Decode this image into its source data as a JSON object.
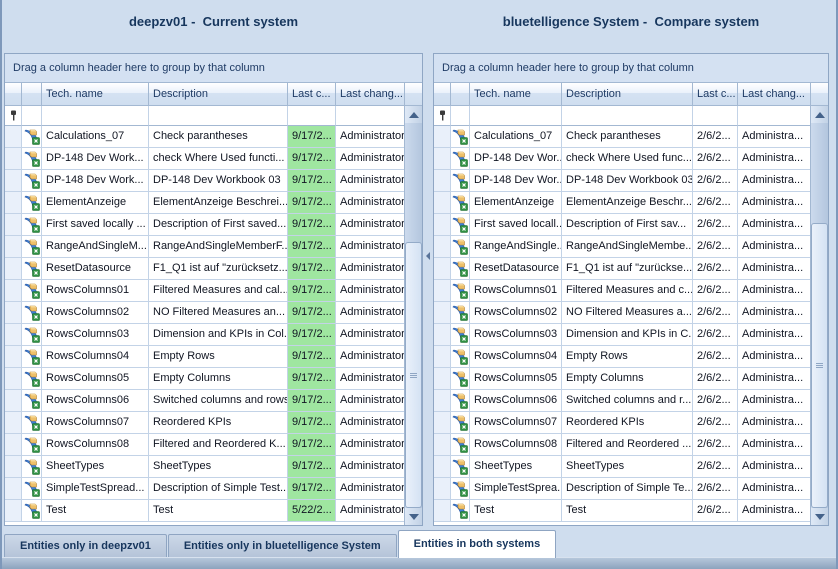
{
  "colors": {
    "highlight_green": "#9fe6a0",
    "title_navy": "#17365d",
    "window_background": "#cfddee"
  },
  "panels": [
    {
      "side": "left",
      "title": "deepzv01 -  Current system",
      "group_hint": "Drag a column header here to group by that column",
      "columns": [
        "Tech. name",
        "Description",
        "Last c...",
        "Last chang..."
      ],
      "date_highlighted": true,
      "rows": [
        {
          "tech": "Calculations_07",
          "desc": "Check parantheses",
          "date": "9/17/2...",
          "user": "Administrator"
        },
        {
          "tech": "DP-148 Dev Work...",
          "desc": "check Where Used functi...",
          "date": "9/17/2...",
          "user": "Administrator"
        },
        {
          "tech": "DP-148 Dev Work...",
          "desc": "DP-148 Dev Workbook 03",
          "date": "9/17/2...",
          "user": "Administrator"
        },
        {
          "tech": "ElementAnzeige",
          "desc": "ElementAnzeige Beschrei...",
          "date": "9/17/2...",
          "user": "Administrator"
        },
        {
          "tech": "First saved locally ...",
          "desc": "Description of First saved...",
          "date": "9/17/2...",
          "user": "Administrator"
        },
        {
          "tech": "RangeAndSingleM...",
          "desc": "RangeAndSingleMemberF...",
          "date": "9/17/2...",
          "user": "Administrator"
        },
        {
          "tech": "ResetDatasource",
          "desc": "F1_Q1 ist auf \"zurücksetz...",
          "date": "9/17/2...",
          "user": "Administrator"
        },
        {
          "tech": "RowsColumns01",
          "desc": "Filtered Measures and cal...",
          "date": "9/17/2...",
          "user": "Administrator"
        },
        {
          "tech": "RowsColumns02",
          "desc": "NO Filtered Measures an...",
          "date": "9/17/2...",
          "user": "Administrator"
        },
        {
          "tech": "RowsColumns03",
          "desc": "Dimension and KPIs in Col...",
          "date": "9/17/2...",
          "user": "Administrator"
        },
        {
          "tech": "RowsColumns04",
          "desc": "Empty Rows",
          "date": "9/17/2...",
          "user": "Administrator"
        },
        {
          "tech": "RowsColumns05",
          "desc": "Empty Columns",
          "date": "9/17/2...",
          "user": "Administrator"
        },
        {
          "tech": "RowsColumns06",
          "desc": "Switched columns and rows",
          "date": "9/17/2...",
          "user": "Administrator"
        },
        {
          "tech": "RowsColumns07",
          "desc": "Reordered KPIs",
          "date": "9/17/2...",
          "user": "Administrator"
        },
        {
          "tech": "RowsColumns08",
          "desc": "Filtered and Reordered K...",
          "date": "9/17/2...",
          "user": "Administrator"
        },
        {
          "tech": "SheetTypes",
          "desc": "SheetTypes",
          "date": "9/17/2...",
          "user": "Administrator"
        },
        {
          "tech": "SimpleTestSpread...",
          "desc": "Description of Simple Test...",
          "date": "9/17/2...",
          "user": "Administrator"
        },
        {
          "tech": "Test",
          "desc": "Test",
          "date": "5/22/2...",
          "user": "Administrator"
        }
      ]
    },
    {
      "side": "right",
      "title": "bluetelligence System -  Compare system",
      "group_hint": "Drag a column header here to group by that column",
      "columns": [
        "Tech. name",
        "Description",
        "Last c...",
        "Last chang..."
      ],
      "date_highlighted": false,
      "rows": [
        {
          "tech": "Calculations_07",
          "desc": "Check parantheses",
          "date": "2/6/2...",
          "user": "Administra..."
        },
        {
          "tech": "DP-148 Dev Wor...",
          "desc": "check Where Used func...",
          "date": "2/6/2...",
          "user": "Administra..."
        },
        {
          "tech": "DP-148 Dev Wor...",
          "desc": "DP-148 Dev Workbook 03",
          "date": "2/6/2...",
          "user": "Administra..."
        },
        {
          "tech": "ElementAnzeige",
          "desc": "ElementAnzeige Beschr...",
          "date": "2/6/2...",
          "user": "Administra..."
        },
        {
          "tech": "First saved locall...",
          "desc": "Description of First sav...",
          "date": "2/6/2...",
          "user": "Administra..."
        },
        {
          "tech": "RangeAndSingle...",
          "desc": "RangeAndSingleMembe...",
          "date": "2/6/2...",
          "user": "Administra..."
        },
        {
          "tech": "ResetDatasource",
          "desc": "F1_Q1 ist auf \"zurückse...",
          "date": "2/6/2...",
          "user": "Administra..."
        },
        {
          "tech": "RowsColumns01",
          "desc": "Filtered Measures and c...",
          "date": "2/6/2...",
          "user": "Administra..."
        },
        {
          "tech": "RowsColumns02",
          "desc": "NO Filtered Measures a...",
          "date": "2/6/2...",
          "user": "Administra..."
        },
        {
          "tech": "RowsColumns03",
          "desc": "Dimension and KPIs in C...",
          "date": "2/6/2...",
          "user": "Administra..."
        },
        {
          "tech": "RowsColumns04",
          "desc": "Empty Rows",
          "date": "2/6/2...",
          "user": "Administra..."
        },
        {
          "tech": "RowsColumns05",
          "desc": "Empty Columns",
          "date": "2/6/2...",
          "user": "Administra..."
        },
        {
          "tech": "RowsColumns06",
          "desc": "Switched columns and r...",
          "date": "2/6/2...",
          "user": "Administra..."
        },
        {
          "tech": "RowsColumns07",
          "desc": "Reordered KPIs",
          "date": "2/6/2...",
          "user": "Administra..."
        },
        {
          "tech": "RowsColumns08",
          "desc": "Filtered and Reordered ...",
          "date": "2/6/2...",
          "user": "Administra..."
        },
        {
          "tech": "SheetTypes",
          "desc": "SheetTypes",
          "date": "2/6/2...",
          "user": "Administra..."
        },
        {
          "tech": "SimpleTestSprea...",
          "desc": "Description of Simple Te...",
          "date": "2/6/2...",
          "user": "Administra..."
        },
        {
          "tech": "Test",
          "desc": "Test",
          "date": "2/6/2...",
          "user": "Administra..."
        }
      ]
    }
  ],
  "tabs": [
    {
      "label": "Entities only in deepzv01",
      "active": false
    },
    {
      "label": "Entities only in bluetelligence System",
      "active": false
    },
    {
      "label": "Entities in both systems",
      "active": true
    }
  ]
}
